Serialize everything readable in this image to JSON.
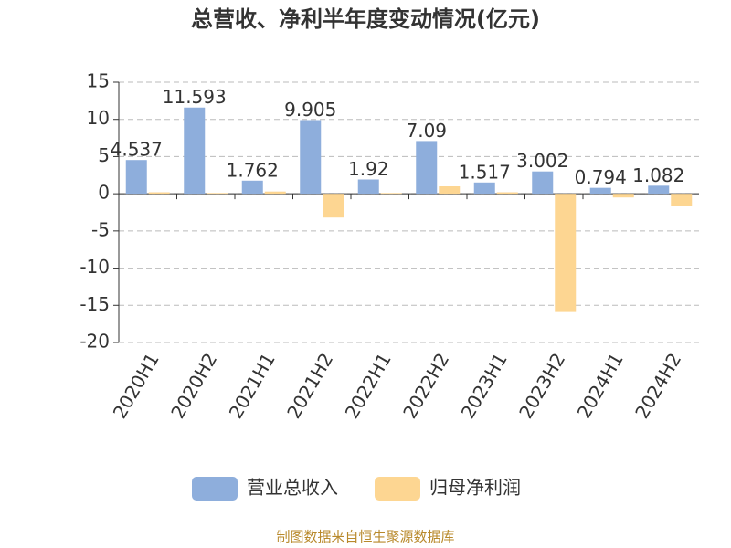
{
  "chart_data": {
    "type": "bar",
    "title": "总营收、净利半年度变动情况(亿元)",
    "categories": [
      "2020H1",
      "2020H2",
      "2021H1",
      "2021H2",
      "2022H1",
      "2022H2",
      "2023H1",
      "2023H2",
      "2024H1",
      "2024H2"
    ],
    "series": [
      {
        "name": "营业总收入",
        "color": "#8eaedc",
        "values": [
          4.537,
          11.593,
          1.762,
          9.905,
          1.92,
          7.09,
          1.517,
          3.002,
          0.794,
          1.082
        ]
      },
      {
        "name": "归母净利润",
        "color": "#fdd692",
        "values": [
          0.2,
          0.1,
          0.3,
          -3.2,
          0.1,
          1.0,
          0.2,
          -15.9,
          -0.5,
          -1.7
        ]
      }
    ],
    "data_labels_series": 0,
    "ylim": [
      -20,
      15
    ],
    "yticks": [
      -20,
      -15,
      -10,
      -5,
      0,
      5,
      10,
      15
    ],
    "grid": true,
    "source": "制图数据来自恒生聚源数据库"
  }
}
